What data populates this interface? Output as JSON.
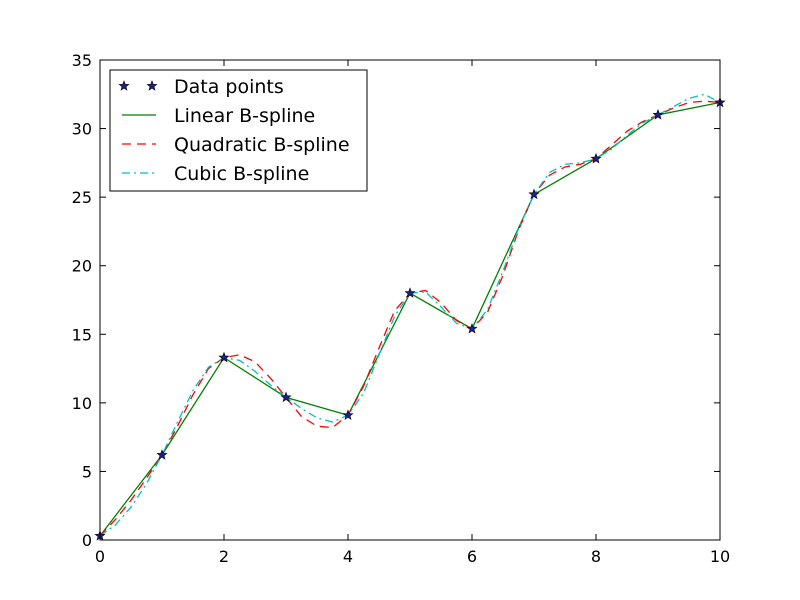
{
  "chart_data": {
    "type": "line",
    "xlim": [
      0,
      10
    ],
    "ylim": [
      0,
      35
    ],
    "xticks": [
      0,
      2,
      4,
      6,
      8,
      10
    ],
    "yticks": [
      0,
      5,
      10,
      15,
      20,
      25,
      30,
      35
    ],
    "grid": false,
    "legend_position": "top-left",
    "series": [
      {
        "name": "Data points",
        "style": "markers",
        "marker": "star",
        "color": "#1f1f8f",
        "x": [
          0,
          1,
          2,
          3,
          4,
          5,
          6,
          7,
          8,
          9,
          10
        ],
        "y": [
          0.3,
          6.2,
          13.3,
          10.4,
          9.1,
          18.0,
          15.4,
          25.2,
          27.8,
          31.0,
          31.9
        ]
      },
      {
        "name": "Linear B-spline",
        "style": "solid",
        "color": "#008000",
        "x": [
          0,
          1,
          2,
          3,
          4,
          5,
          6,
          7,
          8,
          9,
          10
        ],
        "y": [
          0.3,
          6.2,
          13.3,
          10.4,
          9.1,
          18.0,
          15.4,
          25.2,
          27.8,
          31.0,
          31.9
        ]
      },
      {
        "name": "Quadratic B-spline",
        "style": "dashed",
        "color": "#ff0000",
        "x": [
          0,
          0.25,
          0.5,
          0.75,
          1,
          1.25,
          1.5,
          1.75,
          2,
          2.25,
          2.5,
          2.75,
          3,
          3.25,
          3.5,
          3.75,
          4,
          4.25,
          4.5,
          4.75,
          5,
          5.25,
          5.5,
          5.75,
          6,
          6.25,
          6.5,
          6.75,
          7,
          7.25,
          7.5,
          7.75,
          8,
          8.25,
          8.5,
          8.75,
          9,
          9.25,
          9.5,
          9.75,
          10
        ],
        "y": [
          0.3,
          1.5,
          2.9,
          4.5,
          6.2,
          8.3,
          10.6,
          12.5,
          13.3,
          13.5,
          13.0,
          11.8,
          10.4,
          9.0,
          8.3,
          8.2,
          9.1,
          11.2,
          14.0,
          16.7,
          18.0,
          18.2,
          17.3,
          16.0,
          15.4,
          16.6,
          19.3,
          22.6,
          25.2,
          26.6,
          27.2,
          27.4,
          27.8,
          28.8,
          29.8,
          30.5,
          31.0,
          31.5,
          31.9,
          32.0,
          31.9
        ]
      },
      {
        "name": "Cubic B-spline",
        "style": "dashdot",
        "color": "#00bfbf",
        "x": [
          0,
          0.25,
          0.5,
          0.75,
          1,
          1.25,
          1.5,
          1.75,
          2,
          2.25,
          2.5,
          2.75,
          3,
          3.25,
          3.5,
          3.75,
          4,
          4.25,
          4.5,
          4.75,
          5,
          5.25,
          5.5,
          5.75,
          6,
          6.25,
          6.5,
          6.75,
          7,
          7.25,
          7.5,
          7.75,
          8,
          8.25,
          8.5,
          8.75,
          9,
          9.25,
          9.5,
          9.75,
          10
        ],
        "y": [
          0.3,
          1.1,
          2.4,
          4.1,
          6.2,
          8.6,
          10.9,
          12.6,
          13.3,
          13.1,
          12.3,
          11.3,
          10.4,
          9.6,
          8.9,
          8.6,
          9.1,
          10.7,
          13.5,
          16.3,
          18.0,
          18.1,
          17.0,
          15.8,
          15.4,
          16.8,
          19.6,
          22.7,
          25.2,
          26.8,
          27.4,
          27.5,
          27.8,
          28.5,
          29.5,
          30.4,
          31.0,
          31.6,
          32.2,
          32.5,
          31.9
        ]
      }
    ]
  }
}
